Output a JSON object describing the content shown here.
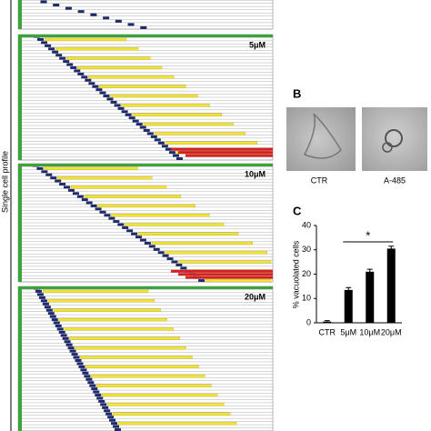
{
  "panel_a": {
    "y_label": "Single cell profile",
    "doses": [
      "5μM",
      "10μM",
      "20μM"
    ]
  },
  "panel_b": {
    "label": "B",
    "images": [
      "CTR",
      "A-485"
    ]
  },
  "chart_data": {
    "type": "bar",
    "panel_label": "C",
    "y_label": "% vacuolated cells",
    "categories": [
      "CTR",
      "5μM",
      "10μM",
      "20μM"
    ],
    "values": [
      0.5,
      13.5,
      21,
      30.5
    ],
    "errors": [
      0.4,
      1,
      1,
      1
    ],
    "color": "#000000",
    "ylim": [
      0,
      40
    ],
    "yticks": [
      0,
      10,
      20,
      30,
      40
    ],
    "annotation": "*"
  }
}
